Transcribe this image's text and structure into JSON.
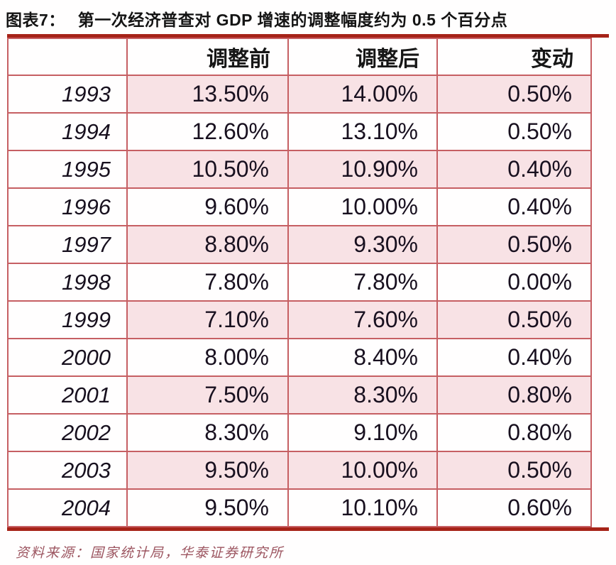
{
  "header": {
    "figure_label": "图表7：",
    "title": "第一次经济普查对 GDP 增速的调整幅度约为 0.5 个百分点"
  },
  "table": {
    "columns": [
      "",
      "调整前",
      "调整后",
      "变动"
    ],
    "rows": [
      {
        "year": "1993",
        "before": "13.50%",
        "after": "14.00%",
        "change": "0.50%"
      },
      {
        "year": "1994",
        "before": "12.60%",
        "after": "13.10%",
        "change": "0.50%"
      },
      {
        "year": "1995",
        "before": "10.50%",
        "after": "10.90%",
        "change": "0.40%"
      },
      {
        "year": "1996",
        "before": "9.60%",
        "after": "10.00%",
        "change": "0.40%"
      },
      {
        "year": "1997",
        "before": "8.80%",
        "after": "9.30%",
        "change": "0.50%"
      },
      {
        "year": "1998",
        "before": "7.80%",
        "after": "7.80%",
        "change": "0.00%"
      },
      {
        "year": "1999",
        "before": "7.10%",
        "after": "7.60%",
        "change": "0.50%"
      },
      {
        "year": "2000",
        "before": "8.00%",
        "after": "8.40%",
        "change": "0.40%"
      },
      {
        "year": "2001",
        "before": "7.50%",
        "after": "8.30%",
        "change": "0.80%"
      },
      {
        "year": "2002",
        "before": "8.30%",
        "after": "9.10%",
        "change": "0.80%"
      },
      {
        "year": "2003",
        "before": "9.50%",
        "after": "10.00%",
        "change": "0.50%"
      },
      {
        "year": "2004",
        "before": "9.50%",
        "after": "10.10%",
        "change": "0.60%"
      }
    ]
  },
  "footer": {
    "source": "资料来源：国家统计局，华泰证券研究所"
  },
  "colors": {
    "thick_rule_red": "#a62318",
    "thin_border_red": "#c65f63",
    "row_stripe_pink": "#f8e2e5",
    "source_text_red": "#9c5560",
    "title_text": "#141414"
  },
  "chart_data": {
    "type": "table",
    "title": "图表7：第一次经济普查对 GDP 增速的调整幅度约为 0.5 个百分点",
    "categories": [
      "1993",
      "1994",
      "1995",
      "1996",
      "1997",
      "1998",
      "1999",
      "2000",
      "2001",
      "2002",
      "2003",
      "2004"
    ],
    "series": [
      {
        "name": "调整前",
        "values": [
          13.5,
          12.6,
          10.5,
          9.6,
          8.8,
          7.8,
          7.1,
          8.0,
          7.5,
          8.3,
          9.5,
          9.5
        ]
      },
      {
        "name": "调整后",
        "values": [
          14.0,
          13.1,
          10.9,
          10.0,
          9.3,
          7.8,
          7.6,
          8.4,
          8.3,
          9.1,
          10.0,
          10.1
        ]
      },
      {
        "name": "变动",
        "values": [
          0.5,
          0.5,
          0.4,
          0.4,
          0.5,
          0.0,
          0.5,
          0.4,
          0.8,
          0.8,
          0.5,
          0.6
        ]
      }
    ],
    "unit": "%",
    "source": "国家统计局，华泰证券研究所",
    "layout": "header row bold right-aligned; year column italic; odd data rows pink-striped; red grid"
  }
}
